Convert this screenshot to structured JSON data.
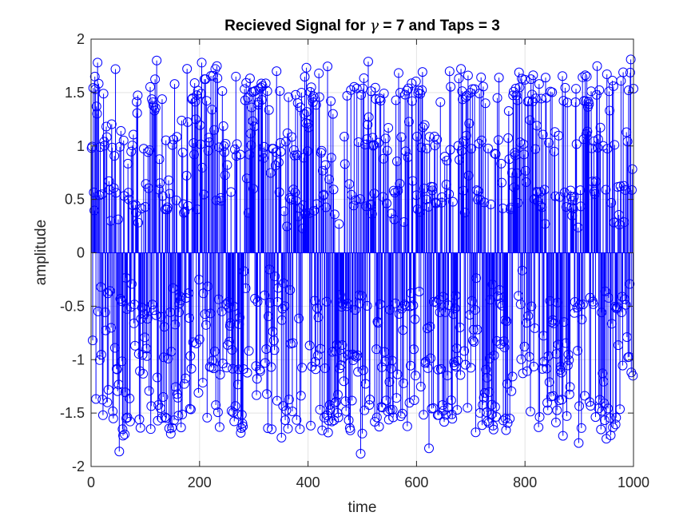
{
  "chart_data": {
    "type": "stem",
    "title_parts": [
      "Recieved Signal for ",
      "γ",
      " = 7 and Taps = 3"
    ],
    "xlabel": "time",
    "ylabel": "amplitude",
    "xlim": [
      0,
      1000
    ],
    "ylim": [
      -2,
      2
    ],
    "x_ticks": [
      0,
      200,
      400,
      600,
      800,
      1000
    ],
    "x_tick_labels": [
      "0",
      "200",
      "400",
      "600",
      "800",
      "1000"
    ],
    "y_ticks": [
      2,
      1.5,
      1,
      0.5,
      0,
      -0.5,
      -1,
      -1.5,
      -2
    ],
    "y_tick_labels": [
      "2",
      "1.5",
      "1",
      "0.5",
      "0",
      "-0.5",
      "-1",
      "-1.5",
      "-2"
    ],
    "grid": true,
    "n_points": 1000,
    "x_start": 1,
    "x_step": 1,
    "series_color": "#0000ff",
    "marker": "circle",
    "levels": [
      -1.5,
      -1.0,
      -0.5,
      0.5,
      1.0,
      1.5
    ],
    "level_spread": 0.16,
    "envelope_period": 100,
    "notable_points": [
      {
        "x": 1,
        "y": 0.98
      },
      {
        "x": 3,
        "y": -0.82
      },
      {
        "x": 7,
        "y": 1.65
      },
      {
        "x": 12,
        "y": 1.78
      },
      {
        "x": 22,
        "y": -1.52
      },
      {
        "x": 45,
        "y": 1.72
      },
      {
        "x": 52,
        "y": -1.86
      },
      {
        "x": 58,
        "y": -1.65
      },
      {
        "x": 121,
        "y": 1.8
      },
      {
        "x": 267,
        "y": 1.65
      },
      {
        "x": 342,
        "y": 1.7
      },
      {
        "x": 385,
        "y": -1.65
      },
      {
        "x": 497,
        "y": -1.88
      },
      {
        "x": 511,
        "y": 1.79
      },
      {
        "x": 623,
        "y": -1.83
      },
      {
        "x": 709,
        "y": -1.68
      },
      {
        "x": 752,
        "y": 1.64
      },
      {
        "x": 800,
        "y": 1.62
      },
      {
        "x": 838,
        "y": 1.64
      },
      {
        "x": 899,
        "y": -1.78
      },
      {
        "x": 914,
        "y": 1.65
      },
      {
        "x": 950,
        "y": -1.74
      },
      {
        "x": 981,
        "y": 1.69
      },
      {
        "x": 995,
        "y": 1.81
      },
      {
        "x": 999,
        "y": -1.15
      }
    ]
  }
}
